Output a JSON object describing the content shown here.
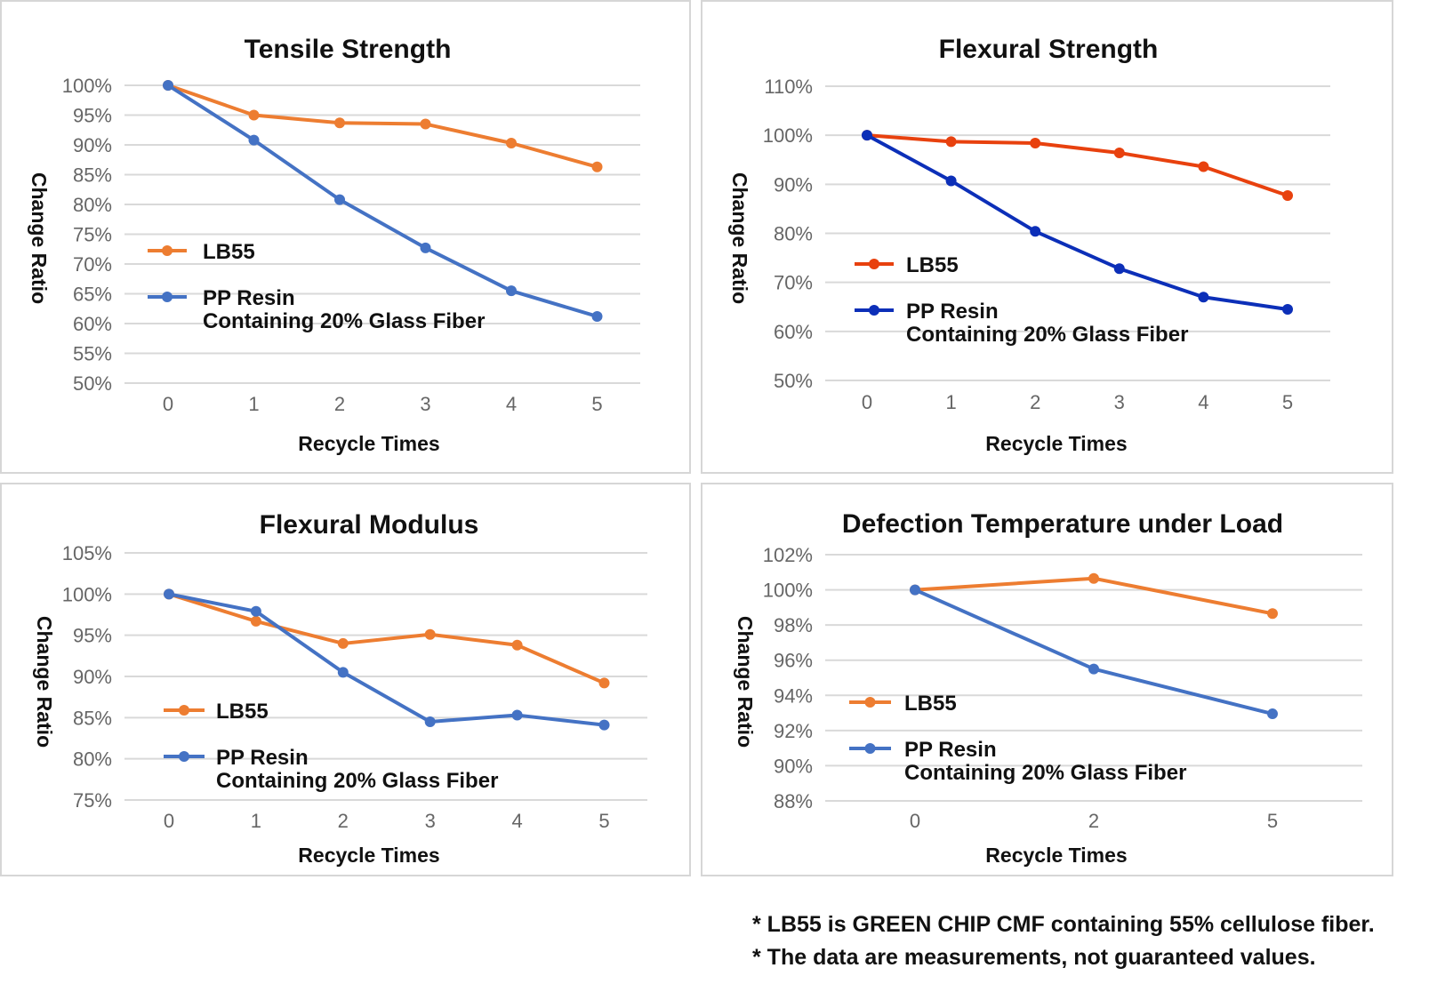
{
  "chart_data": [
    {
      "type": "line",
      "title": "Tensile Strength",
      "xlabel": "Recycle Times",
      "ylabel": "Change Ratio",
      "categories": [
        "0",
        "1",
        "2",
        "3",
        "4",
        "5"
      ],
      "ylim": [
        50,
        100
      ],
      "yticks": [
        "50%",
        "55%",
        "60%",
        "65%",
        "70%",
        "75%",
        "80%",
        "85%",
        "90%",
        "95%",
        "100%"
      ],
      "grid": true,
      "series": [
        {
          "name": "LB55",
          "color": "#ed7d31",
          "values": [
            100,
            95,
            93.7,
            93.5,
            90.3,
            86.3
          ]
        },
        {
          "name": "PP Resin",
          "name_line2": "Containing 20% Glass Fiber",
          "color": "#4472c4",
          "values": [
            100,
            90.8,
            80.8,
            72.7,
            65.5,
            61.2
          ]
        }
      ]
    },
    {
      "type": "line",
      "title": "Flexural Strength",
      "xlabel": "Recycle Times",
      "ylabel": "Change Ratio",
      "categories": [
        "0",
        "1",
        "2",
        "3",
        "4",
        "5"
      ],
      "ylim": [
        50,
        110
      ],
      "yticks": [
        "50%",
        "60%",
        "70%",
        "80%",
        "90%",
        "100%",
        "110%"
      ],
      "grid": true,
      "series": [
        {
          "name": "LB55",
          "color": "#e8410e",
          "values": [
            100,
            98.7,
            98.4,
            96.4,
            93.6,
            87.7
          ]
        },
        {
          "name": "PP Resin",
          "name_line2": "Containing 20% Glass Fiber",
          "color": "#0c2fb8",
          "values": [
            100,
            90.7,
            80.4,
            72.8,
            67,
            64.5
          ]
        }
      ]
    },
    {
      "type": "line",
      "title": "Flexural Modulus",
      "xlabel": "Recycle Times",
      "ylabel": "Change Ratio",
      "categories": [
        "0",
        "1",
        "2",
        "3",
        "4",
        "5"
      ],
      "ylim": [
        75,
        105
      ],
      "yticks": [
        "75%",
        "80%",
        "85%",
        "90%",
        "95%",
        "100%",
        "105%"
      ],
      "grid": true,
      "series": [
        {
          "name": "LB55",
          "color": "#ed7d31",
          "values": [
            100,
            96.7,
            94,
            95.1,
            93.8,
            89.2
          ]
        },
        {
          "name": "PP Resin",
          "name_line2": "Containing 20% Glass Fiber",
          "color": "#4472c4",
          "values": [
            100,
            97.9,
            90.5,
            84.5,
            85.3,
            84.1
          ]
        }
      ]
    },
    {
      "type": "line",
      "title": "Defection Temperature under Load",
      "xlabel": "Recycle Times",
      "ylabel": "Change Ratio",
      "categories": [
        "0",
        "2",
        "5"
      ],
      "ylim": [
        88,
        102
      ],
      "yticks": [
        "88%",
        "90%",
        "92%",
        "94%",
        "96%",
        "98%",
        "100%",
        "102%"
      ],
      "grid": true,
      "series": [
        {
          "name": "LB55",
          "color": "#ed7d31",
          "values": [
            100,
            100.65,
            98.65
          ]
        },
        {
          "name": "PP Resin",
          "name_line2": "Containing 20% Glass Fiber",
          "color": "#4472c4",
          "values": [
            100,
            95.5,
            92.95
          ]
        }
      ]
    }
  ],
  "footnotes": [
    "* LB55 is GREEN CHIP CMF containing 55% cellulose fiber.",
    "* The data are measurements, not guaranteed values."
  ]
}
